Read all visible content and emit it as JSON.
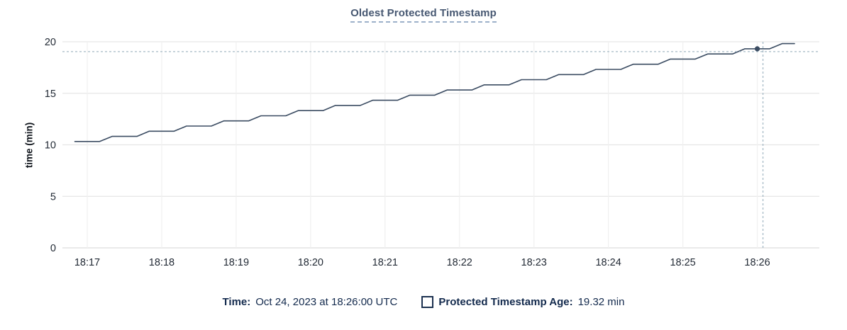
{
  "title": {
    "text": "Oldest Protected Timestamp"
  },
  "footer": {
    "time_label": "Time:",
    "time_value": "Oct 24, 2023 at 18:26:00 UTC",
    "legend_label": "Protected Timestamp Age:",
    "legend_value": "19.32 min",
    "legend_swatch_icon": "empty-square"
  },
  "colors": {
    "line": "#3b4c62",
    "crosshair": "#a6b9c6",
    "grid_horizontal": "#e6e6e6",
    "grid_vertical": "#f0f0f0",
    "grid_zero": "#dedede",
    "tick_text": "#222a35",
    "title_text": "#475872",
    "footer_text": "#132a4d"
  },
  "chart_data": {
    "type": "line",
    "title": "Oldest Protected Timestamp",
    "xlabel": "",
    "ylabel": "time (min)",
    "ylim": [
      0,
      20
    ],
    "y_ticks": [
      0,
      5,
      10,
      15,
      20
    ],
    "x_ticks": [
      "18:17",
      "18:18",
      "18:19",
      "18:20",
      "18:21",
      "18:22",
      "18:23",
      "18:24",
      "18:25",
      "18:26"
    ],
    "x_domain": [
      "18:16:40",
      "18:26:50"
    ],
    "grid": true,
    "legend_position": "bottom",
    "series": [
      {
        "name": "Protected Timestamp Age",
        "unit": "min",
        "points": [
          [
            "18:16:50",
            10.32
          ],
          [
            "18:17:00",
            10.32
          ],
          [
            "18:17:10",
            10.32
          ],
          [
            "18:17:20",
            10.82
          ],
          [
            "18:17:30",
            10.82
          ],
          [
            "18:17:40",
            10.82
          ],
          [
            "18:17:50",
            11.32
          ],
          [
            "18:18:00",
            11.32
          ],
          [
            "18:18:10",
            11.32
          ],
          [
            "18:18:20",
            11.82
          ],
          [
            "18:18:30",
            11.82
          ],
          [
            "18:18:40",
            11.82
          ],
          [
            "18:18:50",
            12.32
          ],
          [
            "18:19:00",
            12.32
          ],
          [
            "18:19:10",
            12.32
          ],
          [
            "18:19:20",
            12.82
          ],
          [
            "18:19:30",
            12.82
          ],
          [
            "18:19:40",
            12.82
          ],
          [
            "18:19:50",
            13.32
          ],
          [
            "18:20:00",
            13.32
          ],
          [
            "18:20:10",
            13.32
          ],
          [
            "18:20:20",
            13.82
          ],
          [
            "18:20:30",
            13.82
          ],
          [
            "18:20:40",
            13.82
          ],
          [
            "18:20:50",
            14.32
          ],
          [
            "18:21:00",
            14.32
          ],
          [
            "18:21:10",
            14.32
          ],
          [
            "18:21:20",
            14.82
          ],
          [
            "18:21:30",
            14.82
          ],
          [
            "18:21:40",
            14.82
          ],
          [
            "18:21:50",
            15.32
          ],
          [
            "18:22:00",
            15.32
          ],
          [
            "18:22:10",
            15.32
          ],
          [
            "18:22:20",
            15.82
          ],
          [
            "18:22:30",
            15.82
          ],
          [
            "18:22:40",
            15.82
          ],
          [
            "18:22:50",
            16.32
          ],
          [
            "18:23:00",
            16.32
          ],
          [
            "18:23:10",
            16.32
          ],
          [
            "18:23:20",
            16.82
          ],
          [
            "18:23:30",
            16.82
          ],
          [
            "18:23:40",
            16.82
          ],
          [
            "18:23:50",
            17.32
          ],
          [
            "18:24:00",
            17.32
          ],
          [
            "18:24:10",
            17.32
          ],
          [
            "18:24:20",
            17.82
          ],
          [
            "18:24:30",
            17.82
          ],
          [
            "18:24:40",
            17.82
          ],
          [
            "18:24:50",
            18.32
          ],
          [
            "18:25:00",
            18.32
          ],
          [
            "18:25:10",
            18.32
          ],
          [
            "18:25:20",
            18.82
          ],
          [
            "18:25:30",
            18.82
          ],
          [
            "18:25:40",
            18.82
          ],
          [
            "18:25:50",
            19.32
          ],
          [
            "18:26:00",
            19.32
          ],
          [
            "18:26:10",
            19.32
          ],
          [
            "18:26:20",
            19.82
          ],
          [
            "18:26:30",
            19.82
          ]
        ]
      }
    ],
    "hover_point": {
      "time": "18:26:00",
      "value": 19.32,
      "crosshair": true
    }
  }
}
